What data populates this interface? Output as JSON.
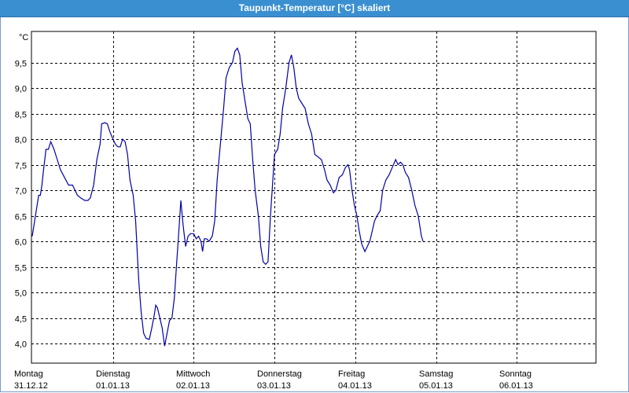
{
  "window": {
    "title": "Taupunkt-Temperatur [°C] skaliert"
  },
  "chart_data": {
    "type": "line",
    "title": "Taupunkt-Temperatur [°C] skaliert",
    "ylabel": "°C",
    "ylim": [
      3.85,
      10.0
    ],
    "yticks": [
      "4,0",
      "4,5",
      "5,0",
      "5,5",
      "6,0",
      "6,5",
      "7,0",
      "7,5",
      "8,0",
      "8,5",
      "9,0",
      "9,5"
    ],
    "ytick_values": [
      4.0,
      4.5,
      5.0,
      5.5,
      6.0,
      6.5,
      7.0,
      7.5,
      8.0,
      8.5,
      9.0,
      9.5
    ],
    "days": [
      {
        "name": "Montag",
        "date": "31.12.12"
      },
      {
        "name": "Dienstag",
        "date": "01.01.13"
      },
      {
        "name": "Mittwoch",
        "date": "02.01.13"
      },
      {
        "name": "Donnerstag",
        "date": "03.01.13"
      },
      {
        "name": "Freitag",
        "date": "04.01.13"
      },
      {
        "name": "Samstag",
        "date": "05.01.13"
      },
      {
        "name": "Sonntag",
        "date": "06.01.13"
      }
    ],
    "grid": true,
    "x_unit": "days since Montag 00:00",
    "series": [
      {
        "color": "#0000aa",
        "points": [
          [
            0.0,
            6.1
          ],
          [
            0.05,
            6.6
          ],
          [
            0.08,
            6.9
          ],
          [
            0.1,
            6.9
          ],
          [
            0.12,
            7.1
          ],
          [
            0.14,
            7.4
          ],
          [
            0.17,
            7.8
          ],
          [
            0.2,
            7.8
          ],
          [
            0.23,
            7.95
          ],
          [
            0.27,
            7.8
          ],
          [
            0.31,
            7.6
          ],
          [
            0.35,
            7.4
          ],
          [
            0.4,
            7.25
          ],
          [
            0.45,
            7.1
          ],
          [
            0.5,
            7.1
          ],
          [
            0.56,
            6.9
          ],
          [
            0.6,
            6.85
          ],
          [
            0.65,
            6.8
          ],
          [
            0.69,
            6.8
          ],
          [
            0.72,
            6.85
          ],
          [
            0.76,
            7.1
          ],
          [
            0.8,
            7.6
          ],
          [
            0.84,
            7.9
          ],
          [
            0.86,
            8.3
          ],
          [
            0.9,
            8.32
          ],
          [
            0.93,
            8.3
          ],
          [
            0.96,
            8.15
          ],
          [
            1.0,
            8.0
          ],
          [
            1.03,
            7.9
          ],
          [
            1.06,
            7.85
          ],
          [
            1.09,
            7.85
          ],
          [
            1.12,
            8.0
          ],
          [
            1.15,
            7.95
          ],
          [
            1.18,
            7.7
          ],
          [
            1.21,
            7.2
          ],
          [
            1.25,
            6.9
          ],
          [
            1.28,
            6.4
          ],
          [
            1.3,
            5.8
          ],
          [
            1.32,
            5.2
          ],
          [
            1.35,
            4.6
          ],
          [
            1.38,
            4.2
          ],
          [
            1.41,
            4.1
          ],
          [
            1.45,
            4.08
          ],
          [
            1.48,
            4.3
          ],
          [
            1.51,
            4.55
          ],
          [
            1.53,
            4.75
          ],
          [
            1.55,
            4.7
          ],
          [
            1.58,
            4.5
          ],
          [
            1.61,
            4.3
          ],
          [
            1.64,
            3.95
          ],
          [
            1.67,
            4.2
          ],
          [
            1.7,
            4.45
          ],
          [
            1.73,
            4.5
          ],
          [
            1.76,
            4.9
          ],
          [
            1.79,
            5.6
          ],
          [
            1.82,
            6.3
          ],
          [
            1.84,
            6.8
          ],
          [
            1.87,
            6.3
          ],
          [
            1.9,
            5.9
          ],
          [
            1.93,
            6.1
          ],
          [
            1.96,
            6.15
          ],
          [
            2.0,
            6.15
          ],
          [
            2.03,
            6.05
          ],
          [
            2.06,
            6.1
          ],
          [
            2.09,
            6.0
          ],
          [
            2.11,
            5.8
          ],
          [
            2.13,
            6.05
          ],
          [
            2.16,
            6.05
          ],
          [
            2.19,
            6.0
          ],
          [
            2.23,
            6.1
          ],
          [
            2.26,
            6.4
          ],
          [
            2.29,
            7.2
          ],
          [
            2.33,
            7.9
          ],
          [
            2.37,
            8.6
          ],
          [
            2.4,
            9.2
          ],
          [
            2.44,
            9.4
          ],
          [
            2.48,
            9.5
          ],
          [
            2.51,
            9.72
          ],
          [
            2.54,
            9.78
          ],
          [
            2.57,
            9.65
          ],
          [
            2.6,
            9.1
          ],
          [
            2.64,
            8.7
          ],
          [
            2.67,
            8.4
          ],
          [
            2.7,
            8.3
          ],
          [
            2.73,
            7.6
          ],
          [
            2.76,
            7.0
          ],
          [
            2.8,
            6.5
          ],
          [
            2.83,
            5.9
          ],
          [
            2.86,
            5.6
          ],
          [
            2.89,
            5.55
          ],
          [
            2.92,
            5.6
          ],
          [
            2.95,
            6.5
          ],
          [
            2.98,
            7.2
          ],
          [
            3.0,
            7.7
          ],
          [
            3.04,
            7.8
          ],
          [
            3.07,
            8.1
          ],
          [
            3.1,
            8.6
          ],
          [
            3.14,
            9.0
          ],
          [
            3.18,
            9.5
          ],
          [
            3.21,
            9.65
          ],
          [
            3.24,
            9.4
          ],
          [
            3.27,
            9.0
          ],
          [
            3.3,
            8.8
          ],
          [
            3.34,
            8.7
          ],
          [
            3.38,
            8.6
          ],
          [
            3.42,
            8.3
          ],
          [
            3.46,
            8.1
          ],
          [
            3.5,
            7.7
          ],
          [
            3.54,
            7.65
          ],
          [
            3.58,
            7.6
          ],
          [
            3.62,
            7.4
          ],
          [
            3.65,
            7.2
          ],
          [
            3.69,
            7.1
          ],
          [
            3.73,
            6.95
          ],
          [
            3.76,
            7.0
          ],
          [
            3.8,
            7.25
          ],
          [
            3.84,
            7.3
          ],
          [
            3.88,
            7.45
          ],
          [
            3.91,
            7.5
          ],
          [
            3.93,
            7.4
          ],
          [
            3.96,
            7.0
          ],
          [
            3.99,
            6.7
          ],
          [
            4.02,
            6.5
          ],
          [
            4.05,
            6.2
          ],
          [
            4.08,
            5.95
          ],
          [
            4.12,
            5.8
          ],
          [
            4.15,
            5.9
          ],
          [
            4.18,
            6.0
          ],
          [
            4.21,
            6.2
          ],
          [
            4.24,
            6.4
          ],
          [
            4.27,
            6.5
          ],
          [
            4.31,
            6.6
          ],
          [
            4.34,
            7.0
          ],
          [
            4.38,
            7.2
          ],
          [
            4.42,
            7.3
          ],
          [
            4.46,
            7.45
          ],
          [
            4.5,
            7.6
          ],
          [
            4.53,
            7.5
          ],
          [
            4.56,
            7.55
          ],
          [
            4.59,
            7.5
          ],
          [
            4.62,
            7.35
          ],
          [
            4.66,
            7.25
          ],
          [
            4.7,
            7.0
          ],
          [
            4.74,
            6.7
          ],
          [
            4.78,
            6.5
          ],
          [
            4.82,
            6.1
          ],
          [
            4.84,
            6.0
          ]
        ]
      }
    ]
  }
}
